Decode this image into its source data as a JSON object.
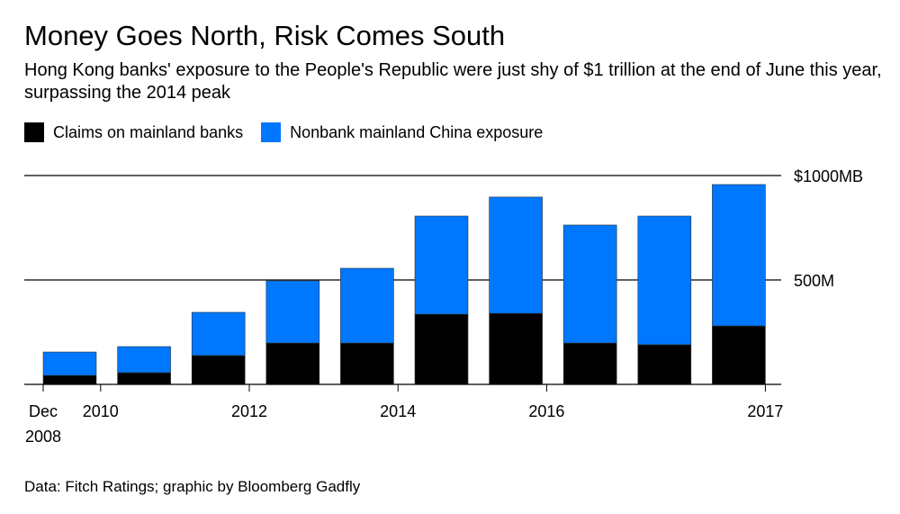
{
  "title": "Money Goes North, Risk Comes South",
  "subtitle": "Hong Kong banks' exposure to the People's Republic were just shy of $1 trillion at the end of June this year, surpassing the 2014 peak",
  "source": "Data: Fitch Ratings; graphic by Bloomberg Gadfly",
  "chart_data": {
    "type": "bar",
    "stacked": true,
    "categories": [
      "2008-12",
      "2009-12",
      "2010-12",
      "2011-12",
      "2012-12",
      "2013-12",
      "2014-12",
      "2015-12",
      "2016-12",
      "2017-06"
    ],
    "series": [
      {
        "name": "Claims on mainland banks",
        "color": "#000000",
        "values": [
          43,
          56,
          138,
          198,
          198,
          336,
          340,
          198,
          190,
          280
        ]
      },
      {
        "name": "Nonbank mainland China exposure",
        "color": "#0077FF",
        "values": [
          112,
          125,
          207,
          298,
          358,
          470,
          557,
          565,
          616,
          677
        ]
      }
    ],
    "ylim": [
      0,
      1000
    ],
    "yticks": [
      {
        "value": 500,
        "label": "500M"
      },
      {
        "value": 1000,
        "label": "$1000MB"
      }
    ],
    "xticks": [
      {
        "index": 0,
        "label": [
          "Dec",
          "2008"
        ]
      },
      {
        "index": 1,
        "label": [
          "2010"
        ]
      },
      {
        "index": 3,
        "label": [
          "2012"
        ]
      },
      {
        "index": 5,
        "label": [
          "2014"
        ]
      },
      {
        "index": 7,
        "label": [
          "2016"
        ]
      },
      {
        "index": 9,
        "label": [
          "2017"
        ]
      }
    ],
    "legend_position": "top-left",
    "grid": true
  }
}
